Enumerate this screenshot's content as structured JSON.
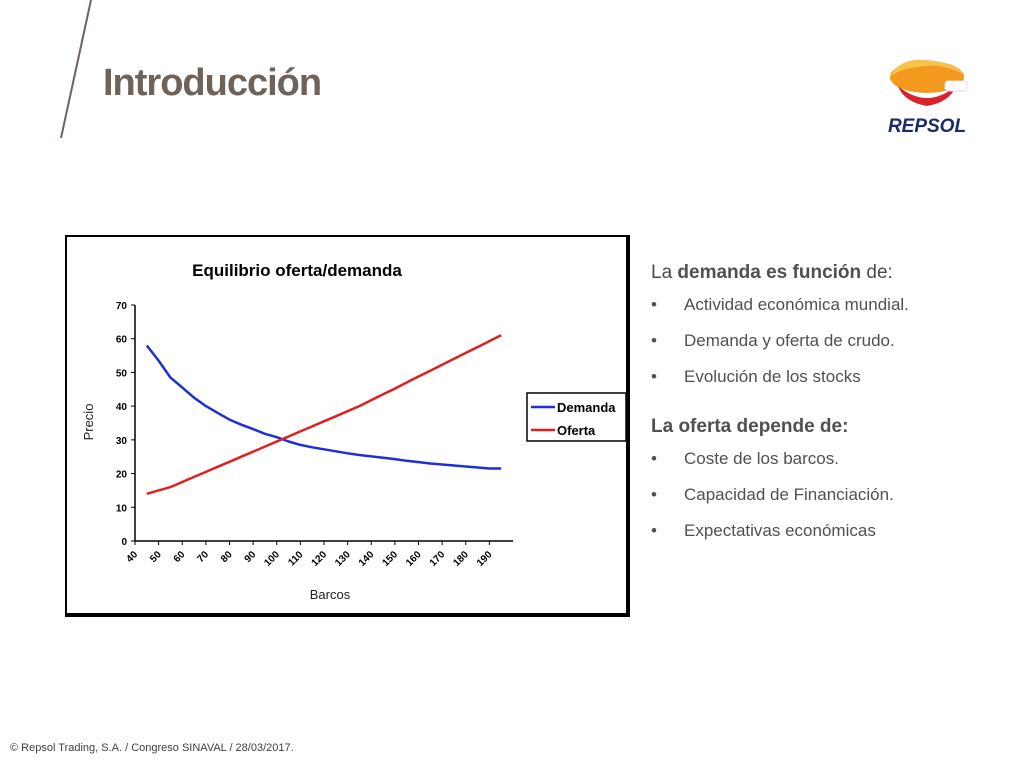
{
  "slide": {
    "title": "Introducción",
    "logo_text": "REPSOL",
    "footer": "© Repsol Trading, S.A. /  Congreso SINAVAL / 28/03/2017."
  },
  "demand_section": {
    "prefix": "La ",
    "bold": "demanda es función",
    "suffix": " de:",
    "bullets": [
      "Actividad económica mundial.",
      "Demanda y oferta de crudo.",
      "Evolución de los stocks"
    ]
  },
  "supply_section": {
    "heading": "La oferta depende de:",
    "bullets": [
      "Coste de los barcos.",
      "Capacidad de Financiación.",
      "Expectativas económicas"
    ]
  },
  "bullet_char": "•",
  "colors": {
    "title": "#6e6259",
    "text": "#505050",
    "demand": "#1f2fd6",
    "supply": "#e02020",
    "logo_orange": "#f39a1e",
    "logo_red": "#d8232a",
    "logo_navy": "#1c2a6b"
  },
  "chart_data": {
    "type": "line",
    "title": "Equilibrio oferta/demanda",
    "xlabel": "Barcos",
    "ylabel": "Precio",
    "x": [
      45,
      50,
      55,
      60,
      65,
      70,
      75,
      80,
      85,
      90,
      95,
      100,
      105,
      110,
      115,
      120,
      125,
      130,
      135,
      140,
      145,
      150,
      155,
      160,
      165,
      170,
      175,
      180,
      185,
      190,
      195
    ],
    "x_ticks": [
      "40",
      "50",
      "60",
      "70",
      "80",
      "90",
      "100",
      "110",
      "120",
      "130",
      "140",
      "150",
      "160",
      "170",
      "180",
      "190"
    ],
    "y_ticks": [
      "0",
      "10",
      "20",
      "30",
      "40",
      "50",
      "60",
      "70"
    ],
    "xlim": [
      40,
      200
    ],
    "ylim": [
      0,
      70
    ],
    "legend_position": "right",
    "series": [
      {
        "name": "Demanda",
        "values": [
          58,
          53.5,
          48.5,
          45.5,
          42.5,
          40,
          38,
          36,
          34.5,
          33.2,
          31.8,
          30.8,
          29.5,
          28.5,
          27.8,
          27.2,
          26.6,
          26,
          25.5,
          25.1,
          24.7,
          24.3,
          23.8,
          23.4,
          23,
          22.7,
          22.4,
          22.1,
          21.8,
          21.5,
          21.5
        ]
      },
      {
        "name": "Oferta",
        "values": [
          14,
          15,
          16,
          17.5,
          19,
          20.5,
          22,
          23.5,
          25,
          26.5,
          28,
          29.5,
          31,
          32.5,
          34,
          35.5,
          37,
          38.5,
          40,
          41.8,
          43.5,
          45.2,
          47,
          48.8,
          50.5,
          52.3,
          54,
          55.8,
          57.5,
          59.3,
          61
        ]
      }
    ]
  }
}
